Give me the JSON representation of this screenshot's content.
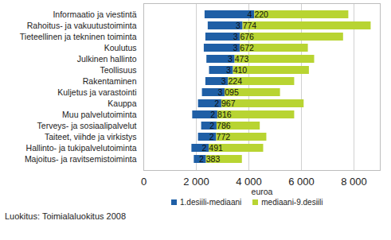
{
  "chart_data": {
    "type": "bar",
    "orientation": "horizontal",
    "stacked": false,
    "categories": [
      "Informaatio ja viestintä",
      "Rahoitus- ja vakuutustoiminta",
      "Tieteellinen ja tekninen toiminta",
      "Koulutus",
      "Julkinen hallinto",
      "Teollisuus",
      "Rakentaminen",
      "Kuljetus ja varastointi",
      "Kauppa",
      "Muu palvelutoiminta",
      "Terveys- ja sosiaalipalvelut",
      "Taiteet, viihde ja virkistys",
      "Hallinto- ja tukipalvelutoiminta",
      "Majoitus- ja ravitsemistoiminta"
    ],
    "series": [
      {
        "name": "1.desiili-mediaani",
        "color": "#1f5fa6",
        "values": [
          [
            2330,
            4220
          ],
          [
            2450,
            3774
          ],
          [
            2360,
            3676
          ],
          [
            2300,
            3672
          ],
          [
            2400,
            3473
          ],
          [
            2500,
            3410
          ],
          [
            2360,
            3224
          ],
          [
            2230,
            3095
          ],
          [
            2080,
            2967
          ],
          [
            1860,
            2816
          ],
          [
            2200,
            2786
          ],
          [
            2080,
            2772
          ],
          [
            1830,
            2491
          ],
          [
            1920,
            2383
          ]
        ]
      },
      {
        "name": "mediaani-9.desiili",
        "color": "#b8d432",
        "values": [
          [
            4220,
            7800
          ],
          [
            3774,
            8650
          ],
          [
            3676,
            7600
          ],
          [
            3672,
            6260
          ],
          [
            3473,
            6500
          ],
          [
            3410,
            6300
          ],
          [
            3224,
            5740
          ],
          [
            3095,
            5200
          ],
          [
            2967,
            6100
          ],
          [
            2816,
            5740
          ],
          [
            2786,
            4430
          ],
          [
            2772,
            4680
          ],
          [
            2491,
            4560
          ],
          [
            2383,
            3750
          ]
        ]
      }
    ],
    "medians": [
      4220,
      3774,
      3676,
      3672,
      3473,
      3410,
      3224,
      3095,
      2967,
      2816,
      2786,
      2772,
      2491,
      2383
    ],
    "data_labels": true,
    "value_labels": [
      "4 220",
      "3 774",
      "3 676",
      "3 672",
      "3 473",
      "3 410",
      "3 224",
      "3 095",
      "2 967",
      "2 816",
      "2 786",
      "2 772",
      "2 491",
      "2 383"
    ],
    "xlabel": "euroa",
    "xlim": [
      0,
      9000
    ],
    "xticks": [
      0,
      {
        "value": 2000,
        "label": "2 000"
      },
      {
        "value": 4000,
        "label": "4 000"
      },
      {
        "value": 6000,
        "label": "6 000"
      },
      {
        "value": 8000,
        "label": "8 000"
      }
    ],
    "grid": true,
    "legend": "bottom",
    "caption": "Luokitus: Toimialaluokitus 2008"
  }
}
